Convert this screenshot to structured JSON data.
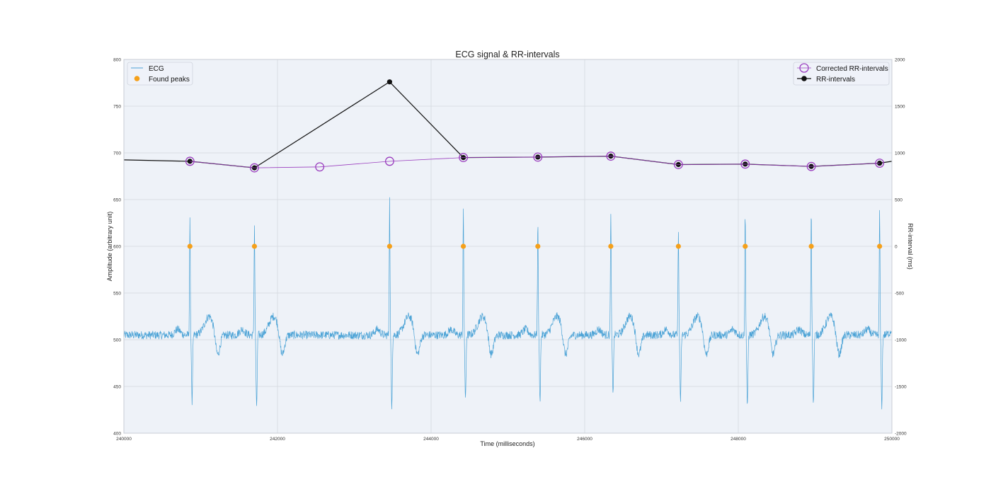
{
  "chart_data": {
    "type": "line",
    "title": "ECG signal & RR-intervals",
    "xlabel": "Time (milliseconds)",
    "ylabel_left": "Amplitude (arbitrary unit)",
    "ylabel_right": "RR-interval (ms)",
    "xlim": [
      240000,
      250000
    ],
    "ylim_left": [
      400,
      800
    ],
    "ylim_right": [
      -2000,
      2000
    ],
    "x_ticks": [
      "240000",
      "242000",
      "244000",
      "246000",
      "248000",
      "250000"
    ],
    "y_ticks_left": [
      "400",
      "450",
      "500",
      "550",
      "600",
      "650",
      "700",
      "750",
      "800"
    ],
    "y_ticks_right": [
      "-2000",
      "-1500",
      "-1000",
      "-500",
      "0",
      "500",
      "1000",
      "1500",
      "2000"
    ],
    "grid": true,
    "legend_left": [
      "ECG",
      "Found peaks"
    ],
    "legend_right": [
      "Corrected RR-intervals",
      "RR-intervals"
    ],
    "legend_left_placement": "top-left",
    "legend_right_placement": "top-right",
    "series": [
      {
        "name": "ECG",
        "axis": "left",
        "color": "#4ca3d6",
        "baseline": 505,
        "beats": [
          {
            "x": 240860,
            "peak": 627,
            "trough": 432
          },
          {
            "x": 241700,
            "peak": 622,
            "trough": 425
          },
          {
            "x": 243460,
            "peak": 650,
            "trough": 430
          },
          {
            "x": 244420,
            "peak": 639,
            "trough": 434
          },
          {
            "x": 245390,
            "peak": 626,
            "trough": 435
          },
          {
            "x": 246340,
            "peak": 639,
            "trough": 442
          },
          {
            "x": 247220,
            "peak": 619,
            "trough": 433
          },
          {
            "x": 248090,
            "peak": 637,
            "trough": 426
          },
          {
            "x": 248950,
            "peak": 640,
            "trough": 430
          },
          {
            "x": 249840,
            "peak": 638,
            "trough": 429
          }
        ]
      },
      {
        "name": "Found peaks",
        "axis": "left",
        "color": "#f5a01a",
        "x": [
          240860,
          241700,
          243460,
          244420,
          245390,
          246340,
          247220,
          248090,
          248950,
          249840
        ],
        "y": [
          600,
          600,
          600,
          600,
          600,
          600,
          600,
          600,
          600,
          600
        ]
      },
      {
        "name": "Corrected RR-intervals",
        "axis": "right",
        "color": "#9b3fbf",
        "x": [
          240860,
          241700,
          242550,
          243460,
          244420,
          245390,
          246340,
          247220,
          248090,
          248950,
          249840
        ],
        "y": [
          910,
          840,
          850,
          910,
          950,
          955,
          965,
          875,
          880,
          855,
          890
        ]
      },
      {
        "name": "RR-intervals",
        "axis": "right",
        "color": "#111111",
        "x": [
          240000,
          240860,
          241700,
          243460,
          244420,
          245390,
          246340,
          247220,
          248090,
          248950,
          249840,
          250000
        ],
        "y": [
          925,
          910,
          840,
          1760,
          950,
          955,
          965,
          875,
          880,
          855,
          890,
          910
        ]
      }
    ]
  }
}
